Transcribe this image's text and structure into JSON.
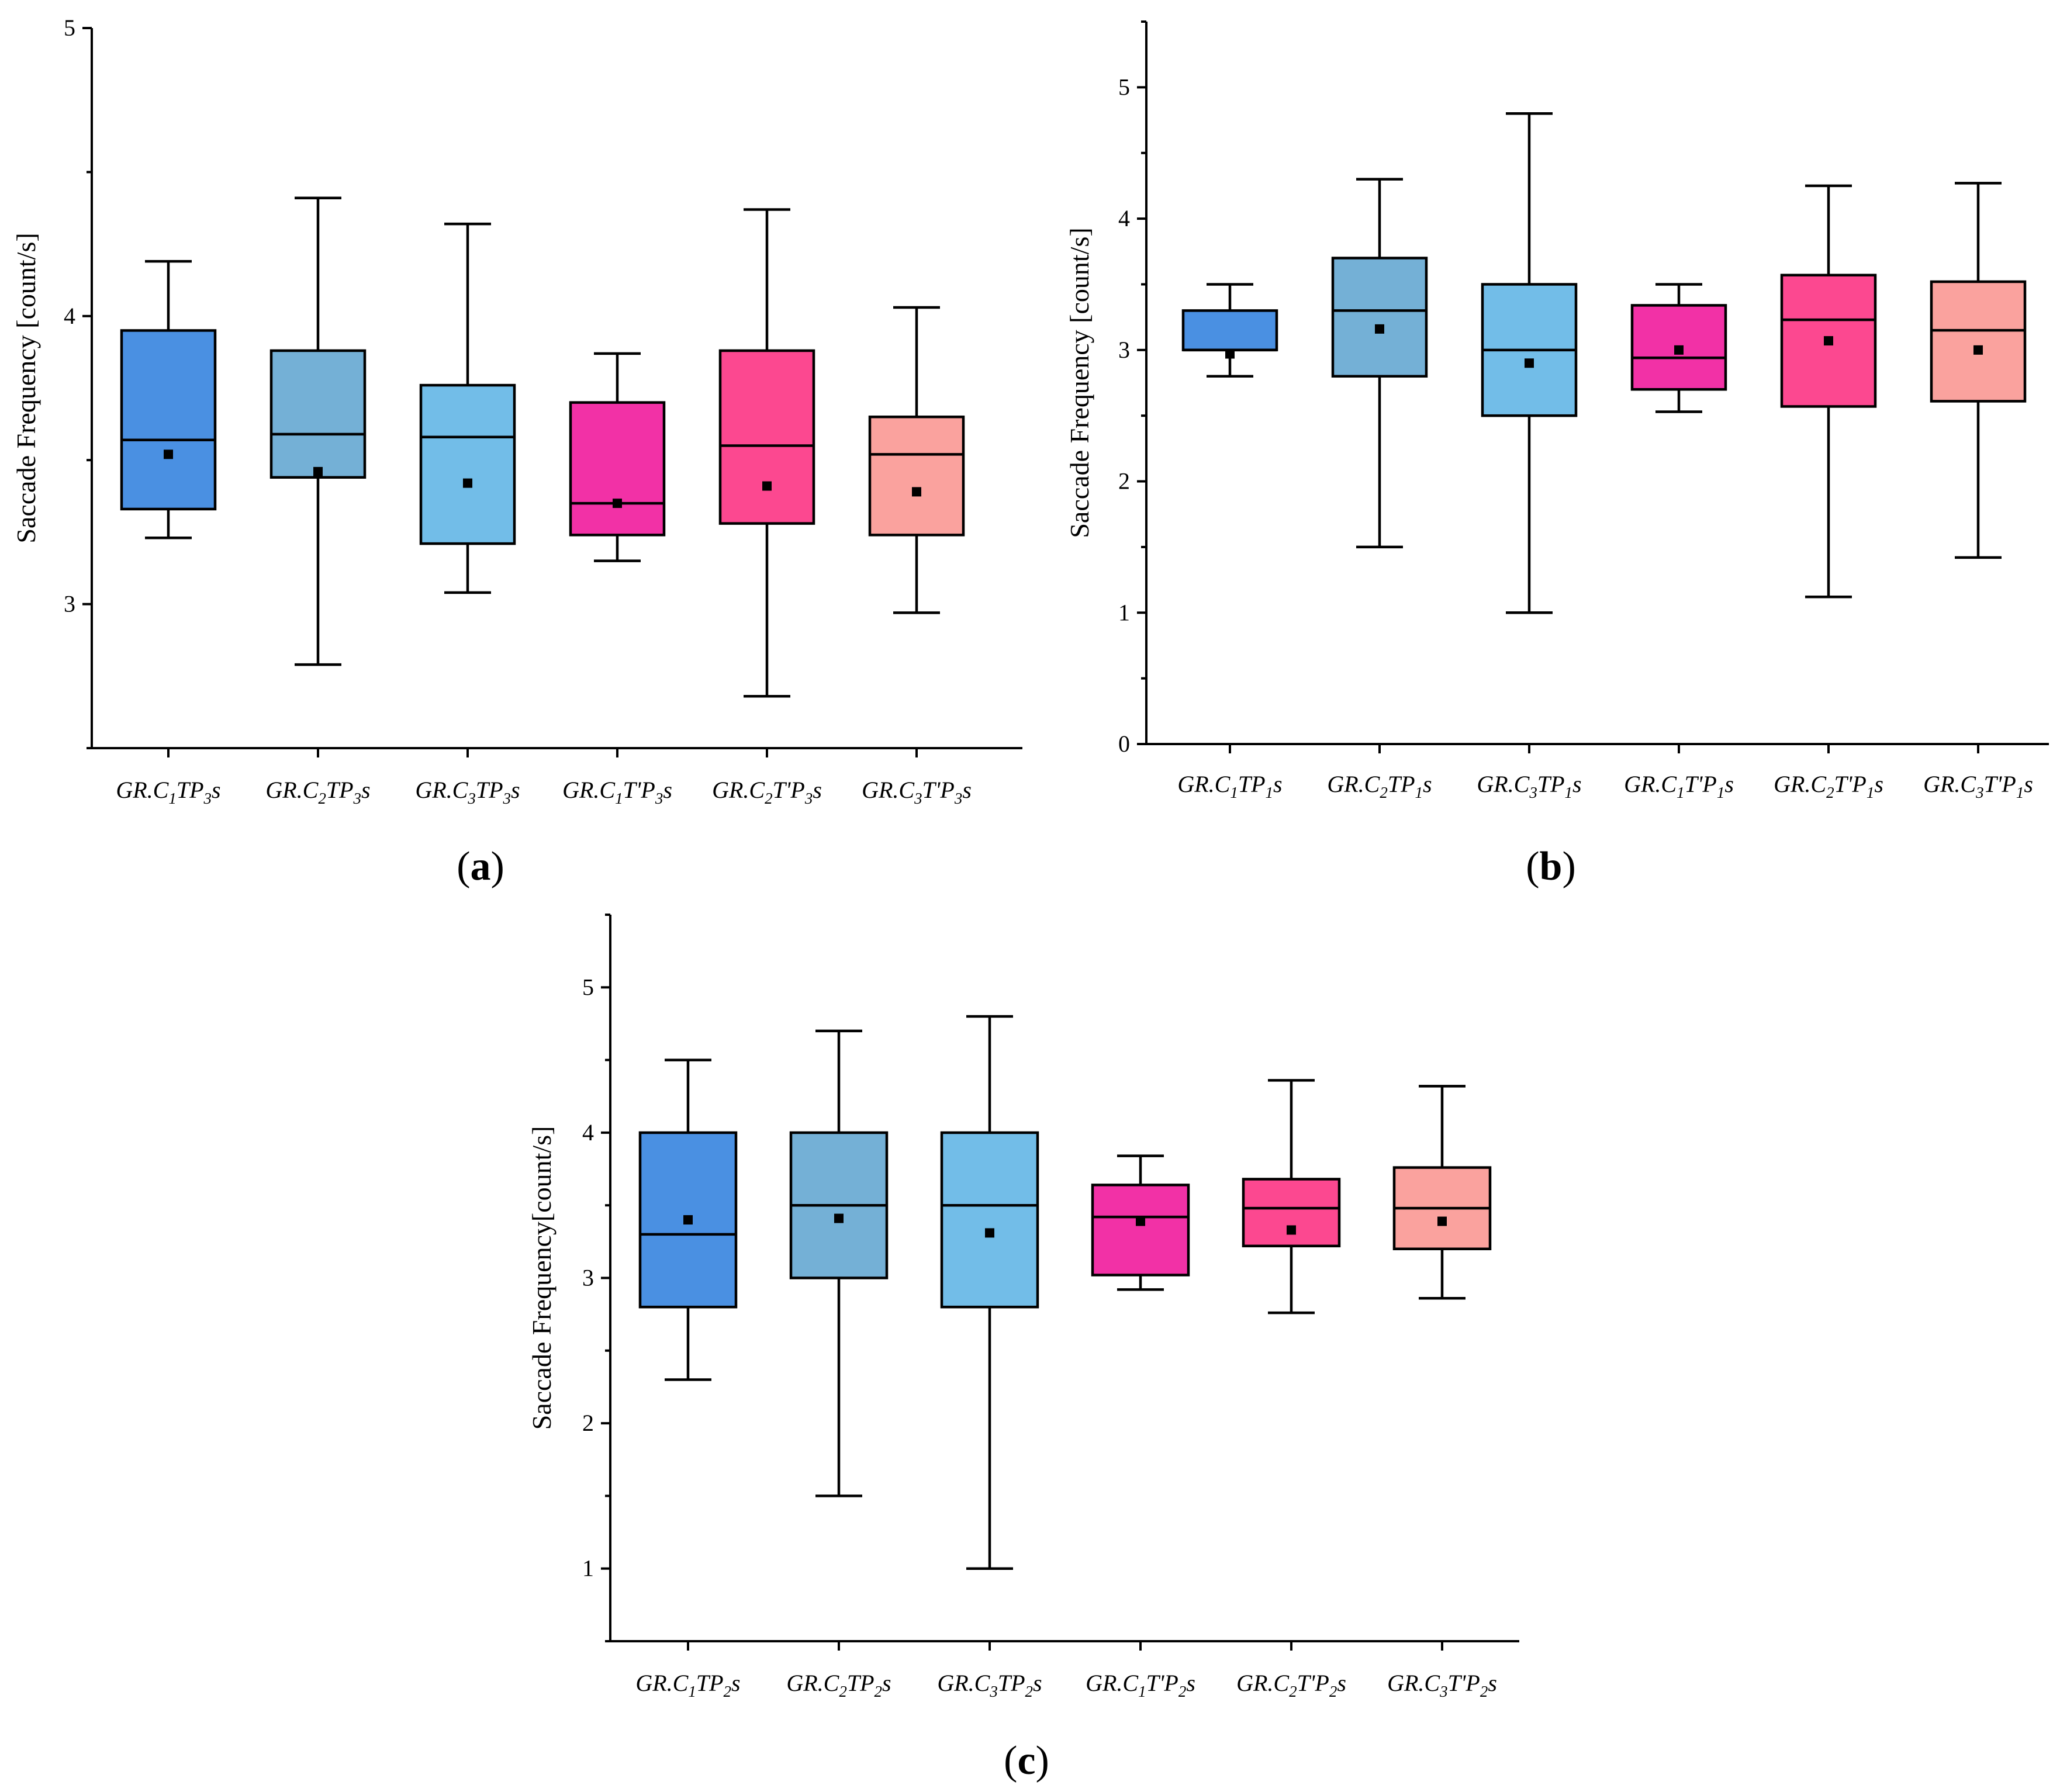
{
  "chart_data": [
    {
      "id": "a",
      "type": "box",
      "panel_label": "a",
      "ylabel": "Saccade Frequency [count/s]",
      "ylim": [
        2.5,
        5
      ],
      "y_ticks": [
        3,
        4,
        5
      ],
      "y_minor_ticks": [
        2.5,
        3.5,
        4.5
      ],
      "categories": [
        {
          "main": "GR.C",
          "sub1": "1",
          "mid": "TP",
          "sub2": "3",
          "end": "s"
        },
        {
          "main": "GR.C",
          "sub1": "2",
          "mid": "TP",
          "sub2": "3",
          "end": "s"
        },
        {
          "main": "GR.C",
          "sub1": "3",
          "mid": "TP",
          "sub2": "3",
          "end": "s"
        },
        {
          "main": "GR.C",
          "sub1": "1",
          "mid": "T'P",
          "sub2": "3",
          "end": "s"
        },
        {
          "main": "GR.C",
          "sub1": "2",
          "mid": "T'P",
          "sub2": "3",
          "end": "s"
        },
        {
          "main": "GR.C",
          "sub1": "3",
          "mid": "T'P",
          "sub2": "3",
          "end": "s"
        }
      ],
      "boxes": [
        {
          "min": 3.23,
          "q1": 3.33,
          "median": 3.57,
          "q3": 3.95,
          "max": 4.19,
          "mean": 3.52
        },
        {
          "min": 2.79,
          "q1": 3.44,
          "median": 3.59,
          "q3": 3.88,
          "max": 4.41,
          "mean": 3.46
        },
        {
          "min": 3.04,
          "q1": 3.21,
          "median": 3.58,
          "q3": 3.76,
          "max": 4.32,
          "mean": 3.42
        },
        {
          "min": 3.15,
          "q1": 3.24,
          "median": 3.35,
          "q3": 3.7,
          "max": 3.87,
          "mean": 3.35
        },
        {
          "min": 2.68,
          "q1": 3.28,
          "median": 3.55,
          "q3": 3.88,
          "max": 4.37,
          "mean": 3.41
        },
        {
          "min": 2.97,
          "q1": 3.24,
          "median": 3.52,
          "q3": 3.65,
          "max": 4.03,
          "mean": 3.39
        }
      ]
    },
    {
      "id": "b",
      "type": "box",
      "panel_label": "b",
      "ylabel": "Saccade Frequency [count/s]",
      "ylim": [
        0,
        5.5
      ],
      "y_ticks": [
        0,
        1,
        2,
        3,
        4,
        5
      ],
      "y_minor_ticks": [
        0.5,
        1.5,
        2.5,
        3.5,
        4.5,
        5.5
      ],
      "categories": [
        {
          "main": "GR.C",
          "sub1": "1",
          "mid": "TP",
          "sub2": "1",
          "end": "s"
        },
        {
          "main": "GR.C",
          "sub1": "2",
          "mid": "TP",
          "sub2": "1",
          "end": "s"
        },
        {
          "main": "GR.C",
          "sub1": "3",
          "mid": "TP",
          "sub2": "1",
          "end": "s"
        },
        {
          "main": "GR.C",
          "sub1": "1",
          "mid": "T'P",
          "sub2": "1",
          "end": "s"
        },
        {
          "main": "GR.C",
          "sub1": "2",
          "mid": "T'P",
          "sub2": "1",
          "end": "s"
        },
        {
          "main": "GR.C",
          "sub1": "3",
          "mid": "T'P",
          "sub2": "1",
          "end": "s"
        }
      ],
      "boxes": [
        {
          "min": 2.8,
          "q1": 3.0,
          "median": 3.0,
          "q3": 3.3,
          "max": 3.5,
          "mean": 2.97
        },
        {
          "min": 1.5,
          "q1": 2.8,
          "median": 3.3,
          "q3": 3.7,
          "max": 4.3,
          "mean": 3.16
        },
        {
          "min": 1.0,
          "q1": 2.5,
          "median": 3.0,
          "q3": 3.5,
          "max": 4.8,
          "mean": 2.9
        },
        {
          "min": 2.53,
          "q1": 2.7,
          "median": 2.94,
          "q3": 3.34,
          "max": 3.5,
          "mean": 3.0
        },
        {
          "min": 1.12,
          "q1": 2.57,
          "median": 3.23,
          "q3": 3.57,
          "max": 4.25,
          "mean": 3.07
        },
        {
          "min": 1.42,
          "q1": 2.61,
          "median": 3.15,
          "q3": 3.52,
          "max": 4.27,
          "mean": 3.0
        }
      ]
    },
    {
      "id": "c",
      "type": "box",
      "panel_label": "c",
      "ylabel": "Saccade Frequency[count/s]",
      "ylim": [
        0.5,
        5.5
      ],
      "y_ticks": [
        1,
        2,
        3,
        4,
        5
      ],
      "y_minor_ticks": [
        0.5,
        1.5,
        2.5,
        3.5,
        4.5,
        5.5
      ],
      "categories": [
        {
          "main": "GR.C",
          "sub1": "1",
          "mid": "TP",
          "sub2": "2",
          "end": "s"
        },
        {
          "main": "GR.C",
          "sub1": "2",
          "mid": "TP",
          "sub2": "2",
          "end": "s"
        },
        {
          "main": "GR.C",
          "sub1": "3",
          "mid": "TP",
          "sub2": "2",
          "end": "s"
        },
        {
          "main": "GR.C",
          "sub1": "1",
          "mid": "T'P",
          "sub2": "2",
          "end": "s"
        },
        {
          "main": "GR.C",
          "sub1": "2",
          "mid": "T'P",
          "sub2": "2",
          "end": "s"
        },
        {
          "main": "GR.C",
          "sub1": "3",
          "mid": "T'P",
          "sub2": "2",
          "end": "s"
        }
      ],
      "boxes": [
        {
          "min": 2.3,
          "q1": 2.8,
          "median": 3.3,
          "q3": 4.0,
          "max": 4.5,
          "mean": 3.4
        },
        {
          "min": 1.5,
          "q1": 3.0,
          "median": 3.5,
          "q3": 4.0,
          "max": 4.7,
          "mean": 3.41
        },
        {
          "min": 1.0,
          "q1": 2.8,
          "median": 3.5,
          "q3": 4.0,
          "max": 4.8,
          "mean": 3.31
        },
        {
          "min": 2.92,
          "q1": 3.02,
          "median": 3.42,
          "q3": 3.64,
          "max": 3.84,
          "mean": 3.39
        },
        {
          "min": 2.76,
          "q1": 3.22,
          "median": 3.48,
          "q3": 3.68,
          "max": 4.36,
          "mean": 3.33
        },
        {
          "min": 2.86,
          "q1": 3.2,
          "median": 3.48,
          "q3": 3.76,
          "max": 4.32,
          "mean": 3.39
        }
      ]
    }
  ],
  "colors": [
    "#4a90e2",
    "#74b0d6",
    "#72bde8",
    "#f231a6",
    "#fc4890",
    "#faa29e"
  ]
}
